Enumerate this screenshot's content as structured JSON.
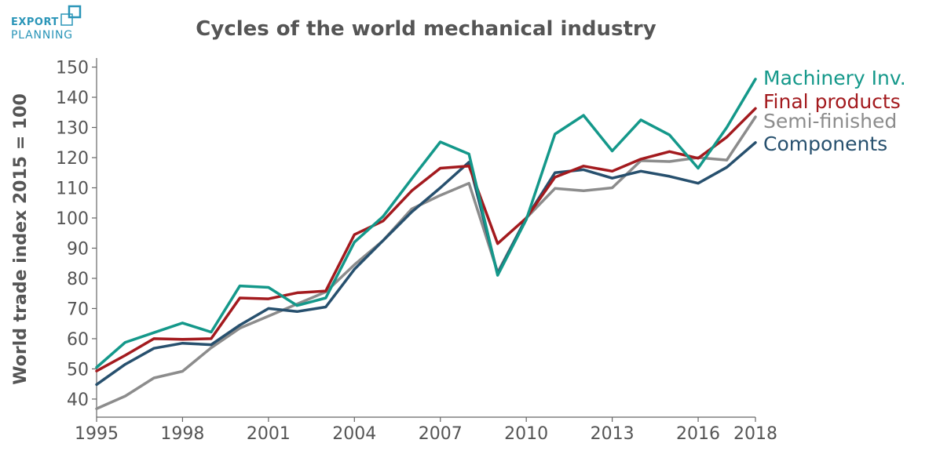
{
  "logo": {
    "line1": "EXPORT",
    "line2": "PLANNING",
    "color": "#2a95b8"
  },
  "chart_data": {
    "type": "line",
    "title": "Cycles of the world mechanical industry",
    "xlabel": "",
    "ylabel": "World trade index 2015 = 100",
    "xlim": [
      1995,
      2018
    ],
    "ylim": [
      34,
      153
    ],
    "x_ticks": [
      1995,
      1998,
      2001,
      2004,
      2007,
      2010,
      2013,
      2016,
      2018
    ],
    "y_ticks": [
      40,
      50,
      60,
      70,
      80,
      90,
      100,
      110,
      120,
      130,
      140,
      150
    ],
    "grid": false,
    "legend": "right, labels at line ends",
    "x": [
      1995,
      1996,
      1997,
      1998,
      1999,
      2000,
      2001,
      2002,
      2003,
      2004,
      2005,
      2006,
      2007,
      2008,
      2009,
      2010,
      2011,
      2012,
      2013,
      2014,
      2015,
      2016,
      2017,
      2018
    ],
    "series": [
      {
        "name": "Semi-finished",
        "color": "#8c8c8c",
        "values": [
          36.8,
          41,
          47,
          49.2,
          57,
          63.5,
          67.5,
          71.5,
          75.5,
          84.5,
          92.5,
          103,
          107.5,
          111.5,
          82,
          100,
          109.8,
          109,
          110,
          119,
          118.7,
          120,
          119.2,
          133.5
        ]
      },
      {
        "name": "Components",
        "color": "#27506e",
        "values": [
          44.8,
          51.5,
          56.8,
          58.5,
          58,
          64.5,
          70,
          69,
          70.5,
          83,
          92.5,
          102,
          110,
          118.5,
          81.5,
          100,
          115,
          116,
          113.2,
          115.5,
          113.8,
          111.5,
          116.8,
          125
        ]
      },
      {
        "name": "Final products",
        "color": "#a31a1e",
        "values": [
          49.3,
          54.5,
          60,
          59.8,
          60,
          73.5,
          73.2,
          75.2,
          75.8,
          94.5,
          99,
          109,
          116.5,
          117.2,
          91.5,
          100,
          113.5,
          117.2,
          115.5,
          119.5,
          122,
          119.8,
          126.8,
          136.3
        ]
      },
      {
        "name": "Machinery Inv.",
        "color": "#14988a",
        "values": [
          50.5,
          58.8,
          62,
          65.2,
          62.2,
          77.5,
          77,
          71,
          73.5,
          92,
          100.5,
          113,
          125.2,
          121.2,
          81,
          99.5,
          127.8,
          134,
          122.2,
          132.5,
          127.5,
          116.5,
          130,
          146
        ]
      }
    ],
    "legend_labels": [
      "Machinery Inv.",
      "Final products",
      "Semi-finished",
      "Components"
    ]
  }
}
